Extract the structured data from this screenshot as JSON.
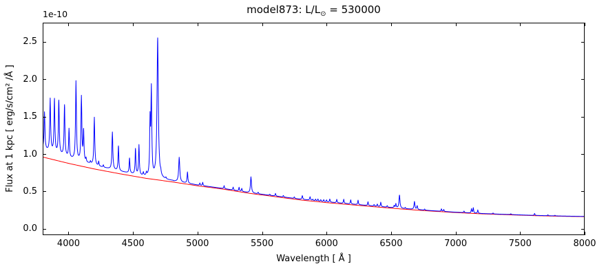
{
  "figure": {
    "background": "#ffffff",
    "title": {
      "text": "model873: L/L⊙ = 530000",
      "prefix": "model873: L/L",
      "sub": "⊙",
      "suffix": " = 530000"
    },
    "offset_label": "1e-10",
    "xlabel": "Wavelength [ Å ]",
    "ylabel": "Flux at 1 kpc [ erg/s/cm² /Å ]"
  },
  "chart_data": {
    "type": "line",
    "title": "model873: L/L⊙ = 530000",
    "xlabel": "Wavelength [ Å ]",
    "ylabel": "Flux at 1 kpc [ erg/s/cm² /Å ]",
    "y_offset_factor": "1e-10",
    "xlim": [
      3800,
      8000
    ],
    "ylim": [
      -0.085,
      2.757
    ],
    "xticks": [
      4000,
      4500,
      5000,
      5500,
      6000,
      6500,
      7000,
      7500,
      8000
    ],
    "xticklabels": [
      "4000",
      "4500",
      "5000",
      "5500",
      "6000",
      "6500",
      "7000",
      "7500",
      "8000"
    ],
    "yticks": [
      0.0,
      0.5,
      1.0,
      1.5,
      2.0,
      2.5
    ],
    "yticklabels": [
      "0.0",
      "0.5",
      "1.0",
      "1.5",
      "2.0",
      "2.5"
    ],
    "grid": false,
    "legend": "none",
    "series": [
      {
        "name": "model spectrum",
        "color": "#0000ff",
        "construction": "continuum_points + excess_points + lorentzian emission_lines [center_A, amplitude_1e-10, hwhm_A]"
      },
      {
        "name": "continuum fit",
        "color": "#ff0000",
        "construction": "continuum_points"
      }
    ],
    "continuum_points": [
      [
        3800,
        0.96
      ],
      [
        4000,
        0.875
      ],
      [
        4200,
        0.8
      ],
      [
        4400,
        0.735
      ],
      [
        4600,
        0.675
      ],
      [
        4800,
        0.628
      ],
      [
        5000,
        0.575
      ],
      [
        5200,
        0.53
      ],
      [
        5400,
        0.475
      ],
      [
        5600,
        0.43
      ],
      [
        5800,
        0.385
      ],
      [
        6000,
        0.35
      ],
      [
        6200,
        0.32
      ],
      [
        6400,
        0.29
      ],
      [
        6600,
        0.262
      ],
      [
        6800,
        0.238
      ],
      [
        7000,
        0.217
      ],
      [
        7200,
        0.2
      ],
      [
        7400,
        0.188
      ],
      [
        7600,
        0.176
      ],
      [
        7800,
        0.168
      ],
      [
        8000,
        0.162
      ]
    ],
    "excess_points": [
      [
        3800,
        0.105
      ],
      [
        3900,
        0.09
      ],
      [
        4000,
        0.074
      ],
      [
        4100,
        0.062
      ],
      [
        4200,
        0.051
      ],
      [
        4300,
        0.042
      ],
      [
        4400,
        0.035
      ],
      [
        4600,
        0.024
      ],
      [
        4800,
        0.016
      ],
      [
        5000,
        0.011
      ],
      [
        5200,
        0.009
      ],
      [
        5400,
        0.008
      ],
      [
        5600,
        0.009
      ],
      [
        5800,
        0.011
      ],
      [
        6000,
        0.011
      ],
      [
        6200,
        0.01
      ],
      [
        6400,
        0.009
      ],
      [
        6600,
        0.008
      ],
      [
        6800,
        0.006
      ],
      [
        7000,
        0.005
      ],
      [
        7400,
        0.004
      ],
      [
        8000,
        0.003
      ]
    ],
    "emission_lines": [
      [
        3814,
        0.5,
        4
      ],
      [
        3858,
        0.7,
        4
      ],
      [
        3891,
        0.71,
        4
      ],
      [
        3925,
        0.71,
        4
      ],
      [
        3969,
        0.68,
        4
      ],
      [
        4004,
        0.38,
        3.5
      ],
      [
        4058,
        1.05,
        4
      ],
      [
        4100,
        0.86,
        4
      ],
      [
        4117,
        0.4,
        3.5
      ],
      [
        4136,
        0.05,
        3
      ],
      [
        4170,
        0.03,
        3
      ],
      [
        4200,
        0.64,
        4
      ],
      [
        4234,
        0.06,
        3
      ],
      [
        4270,
        0.03,
        3
      ],
      [
        4340,
        0.5,
        4
      ],
      [
        4387,
        0.33,
        3.5
      ],
      [
        4473,
        0.2,
        3.5
      ],
      [
        4519,
        0.34,
        3.5
      ],
      [
        4546,
        0.4,
        3.5
      ],
      [
        4580,
        0.04,
        3
      ],
      [
        4604,
        0.04,
        3
      ],
      [
        4632,
        0.7,
        3.5
      ],
      [
        4642,
        1.15,
        4
      ],
      [
        4691,
        1.87,
        6
      ],
      [
        4715,
        0.04,
        3
      ],
      [
        4755,
        0.02,
        3
      ],
      [
        4858,
        0.33,
        5
      ],
      [
        4922,
        0.15,
        3.5
      ],
      [
        5018,
        0.03,
        3
      ],
      [
        5040,
        0.045,
        3
      ],
      [
        5206,
        0.04,
        3
      ],
      [
        5276,
        0.04,
        3
      ],
      [
        5322,
        0.05,
        3
      ],
      [
        5343,
        0.04,
        3
      ],
      [
        5414,
        0.215,
        4.5
      ],
      [
        5470,
        0.02,
        3
      ],
      [
        5560,
        0.015,
        3
      ],
      [
        5604,
        0.035,
        3
      ],
      [
        5665,
        0.02,
        3
      ],
      [
        5750,
        0.02,
        3
      ],
      [
        5812,
        0.05,
        3.5
      ],
      [
        5872,
        0.045,
        3.5
      ],
      [
        5893,
        0.015,
        2.5
      ],
      [
        5915,
        0.02,
        2.5
      ],
      [
        5933,
        0.025,
        2.5
      ],
      [
        5955,
        0.02,
        2.5
      ],
      [
        5978,
        0.025,
        2.5
      ],
      [
        6000,
        0.025,
        2.5
      ],
      [
        6025,
        0.04,
        3
      ],
      [
        6079,
        0.045,
        3
      ],
      [
        6133,
        0.055,
        3
      ],
      [
        6187,
        0.055,
        3
      ],
      [
        6244,
        0.06,
        3
      ],
      [
        6321,
        0.05,
        3
      ],
      [
        6368,
        0.02,
        3
      ],
      [
        6393,
        0.03,
        3
      ],
      [
        6420,
        0.06,
        3
      ],
      [
        6470,
        0.02,
        3
      ],
      [
        6524,
        0.03,
        3
      ],
      [
        6537,
        0.055,
        3
      ],
      [
        6565,
        0.175,
        4.5
      ],
      [
        6610,
        0.015,
        3
      ],
      [
        6681,
        0.105,
        4
      ],
      [
        6702,
        0.05,
        3.5
      ],
      [
        6760,
        0.015,
        3
      ],
      [
        6890,
        0.032,
        3
      ],
      [
        6908,
        0.026,
        3
      ],
      [
        7065,
        0.02,
        3
      ],
      [
        7123,
        0.055,
        3
      ],
      [
        7137,
        0.07,
        3
      ],
      [
        7172,
        0.045,
        3
      ],
      [
        7290,
        0.013,
        3
      ],
      [
        7428,
        0.011,
        3
      ],
      [
        7612,
        0.026,
        3
      ],
      [
        7715,
        0.012,
        3
      ],
      [
        7770,
        0.008,
        3
      ]
    ]
  }
}
